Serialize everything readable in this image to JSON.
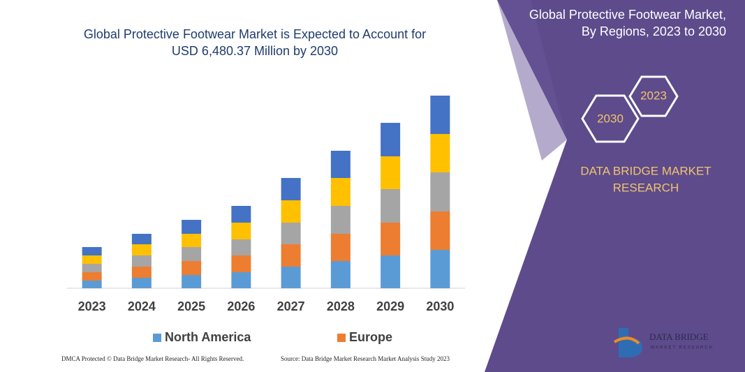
{
  "chart_data": {
    "type": "stacked_bar",
    "title": [
      "Global Protective Footwear Market is Expected to Account for",
      "USD 6,480.37 Million by 2030"
    ],
    "categories": [
      "2023",
      "2024",
      "2025",
      "2026",
      "2027",
      "2028",
      "2029",
      "2030"
    ],
    "series": [
      {
        "name": "North America",
        "color": "#5b9bd5",
        "values": [
          11,
          15,
          19,
          23,
          31,
          39,
          47,
          55
        ]
      },
      {
        "name": "Europe",
        "color": "#ed7d31",
        "values": [
          12,
          16,
          20,
          24,
          32,
          39,
          47,
          55
        ]
      },
      {
        "color": "#a5a5a5",
        "values": [
          12,
          16,
          20,
          23,
          31,
          40,
          48,
          56
        ]
      },
      {
        "color": "#ffc000",
        "values": [
          12,
          16,
          19,
          24,
          32,
          40,
          47,
          55
        ]
      },
      {
        "color": "#4472c4",
        "values": [
          12,
          15,
          20,
          24,
          32,
          39,
          48,
          55
        ]
      }
    ],
    "ylim": [
      0,
      280
    ]
  },
  "panel": {
    "heading": [
      "Global Protective Footwear Market,",
      "By Regions, 2023 to 2030"
    ],
    "hex_start": "2023",
    "hex_end": "2030",
    "brand": [
      "DATA BRIDGE MARKET",
      "RESEARCH"
    ],
    "logo": [
      "DATA BRIDGE",
      "MARKET RESEARCH"
    ]
  },
  "footer": {
    "left": "DMCA Protected © Data Bridge Market Research- All Rights Reserved.",
    "right": "Source: Data Bridge Market Research Market Analysis Study 2023"
  }
}
